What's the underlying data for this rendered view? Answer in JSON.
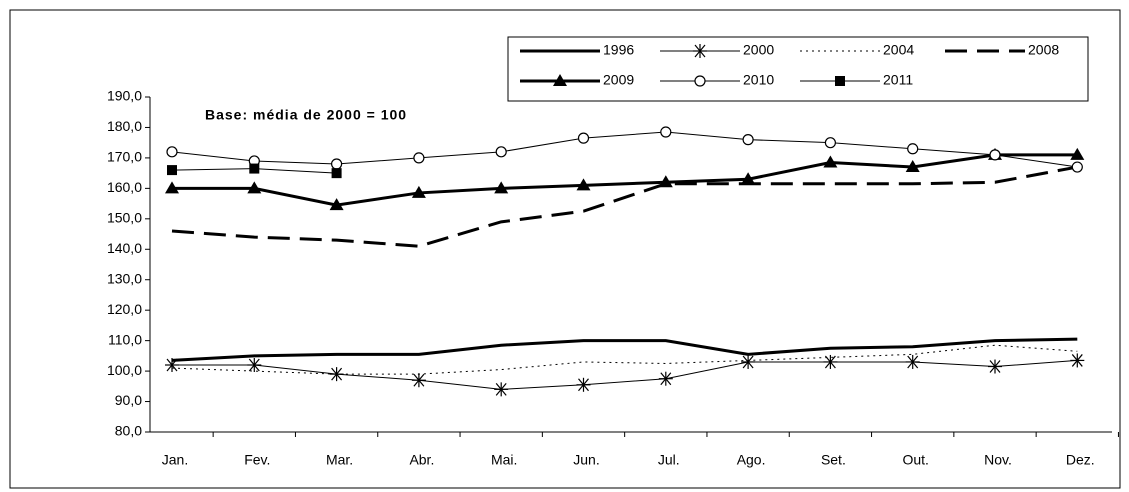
{
  "chart_data": {
    "type": "line",
    "annotation": "Base: média de 2000 = 100",
    "categories": [
      "Jan.",
      "Fev.",
      "Mar.",
      "Abr.",
      "Mai.",
      "Jun.",
      "Jul.",
      "Ago.",
      "Set.",
      "Out.",
      "Nov.",
      "Dez."
    ],
    "ylim": [
      80,
      190
    ],
    "yticks": [
      {
        "value": 80,
        "label": "80,0"
      },
      {
        "value": 90,
        "label": "90,0"
      },
      {
        "value": 100,
        "label": "100,0"
      },
      {
        "value": 110,
        "label": "110,0"
      },
      {
        "value": 120,
        "label": "120,0"
      },
      {
        "value": 130,
        "label": "130,0"
      },
      {
        "value": 140,
        "label": "140,0"
      },
      {
        "value": 150,
        "label": "150,0"
      },
      {
        "value": 160,
        "label": "160,0"
      },
      {
        "value": 170,
        "label": "170,0"
      },
      {
        "value": 180,
        "label": "180,0"
      },
      {
        "value": 190,
        "label": "190,0"
      }
    ],
    "grid": false,
    "legend": "top-right",
    "series": [
      {
        "name": "1996",
        "color": "#000000",
        "width": 3,
        "dash": "solid",
        "marker": "none",
        "values": [
          103.5,
          105,
          105.5,
          105.5,
          108.5,
          110,
          110,
          105.5,
          107.5,
          108,
          110,
          110.5
        ]
      },
      {
        "name": "2000",
        "color": "#000000",
        "width": 1,
        "dash": "solid",
        "marker": "star",
        "values": [
          102,
          102,
          99,
          97,
          94,
          95.5,
          97.5,
          103,
          103,
          103,
          101.5,
          103.5
        ]
      },
      {
        "name": "2004",
        "color": "#000000",
        "width": 1,
        "dash": "dotted",
        "marker": "none",
        "values": [
          101,
          100,
          99,
          99,
          100.5,
          103,
          102.5,
          103.5,
          104.5,
          105.5,
          108.5,
          106.5
        ]
      },
      {
        "name": "2008",
        "color": "#000000",
        "width": 3,
        "dash": "dashed",
        "marker": "none",
        "values": [
          146,
          144,
          143,
          141,
          149,
          152.5,
          161.5,
          161.5,
          161.5,
          161.5,
          162,
          167
        ]
      },
      {
        "name": "2009",
        "color": "#000000",
        "width": 3,
        "dash": "solid",
        "marker": "triangle",
        "values": [
          160,
          160,
          154.5,
          158.5,
          160,
          161,
          162,
          163,
          168.5,
          167,
          171,
          171
        ]
      },
      {
        "name": "2010",
        "color": "#000000",
        "width": 1,
        "dash": "solid",
        "marker": "circle",
        "values": [
          172,
          169,
          168,
          170,
          172,
          176.5,
          178.5,
          176,
          175,
          173,
          171,
          167
        ]
      },
      {
        "name": "2011",
        "color": "#000000",
        "width": 1,
        "dash": "solid",
        "marker": "square",
        "values": [
          166,
          166.5,
          165,
          null,
          null,
          null,
          null,
          null,
          null,
          null,
          null,
          null
        ]
      }
    ]
  }
}
